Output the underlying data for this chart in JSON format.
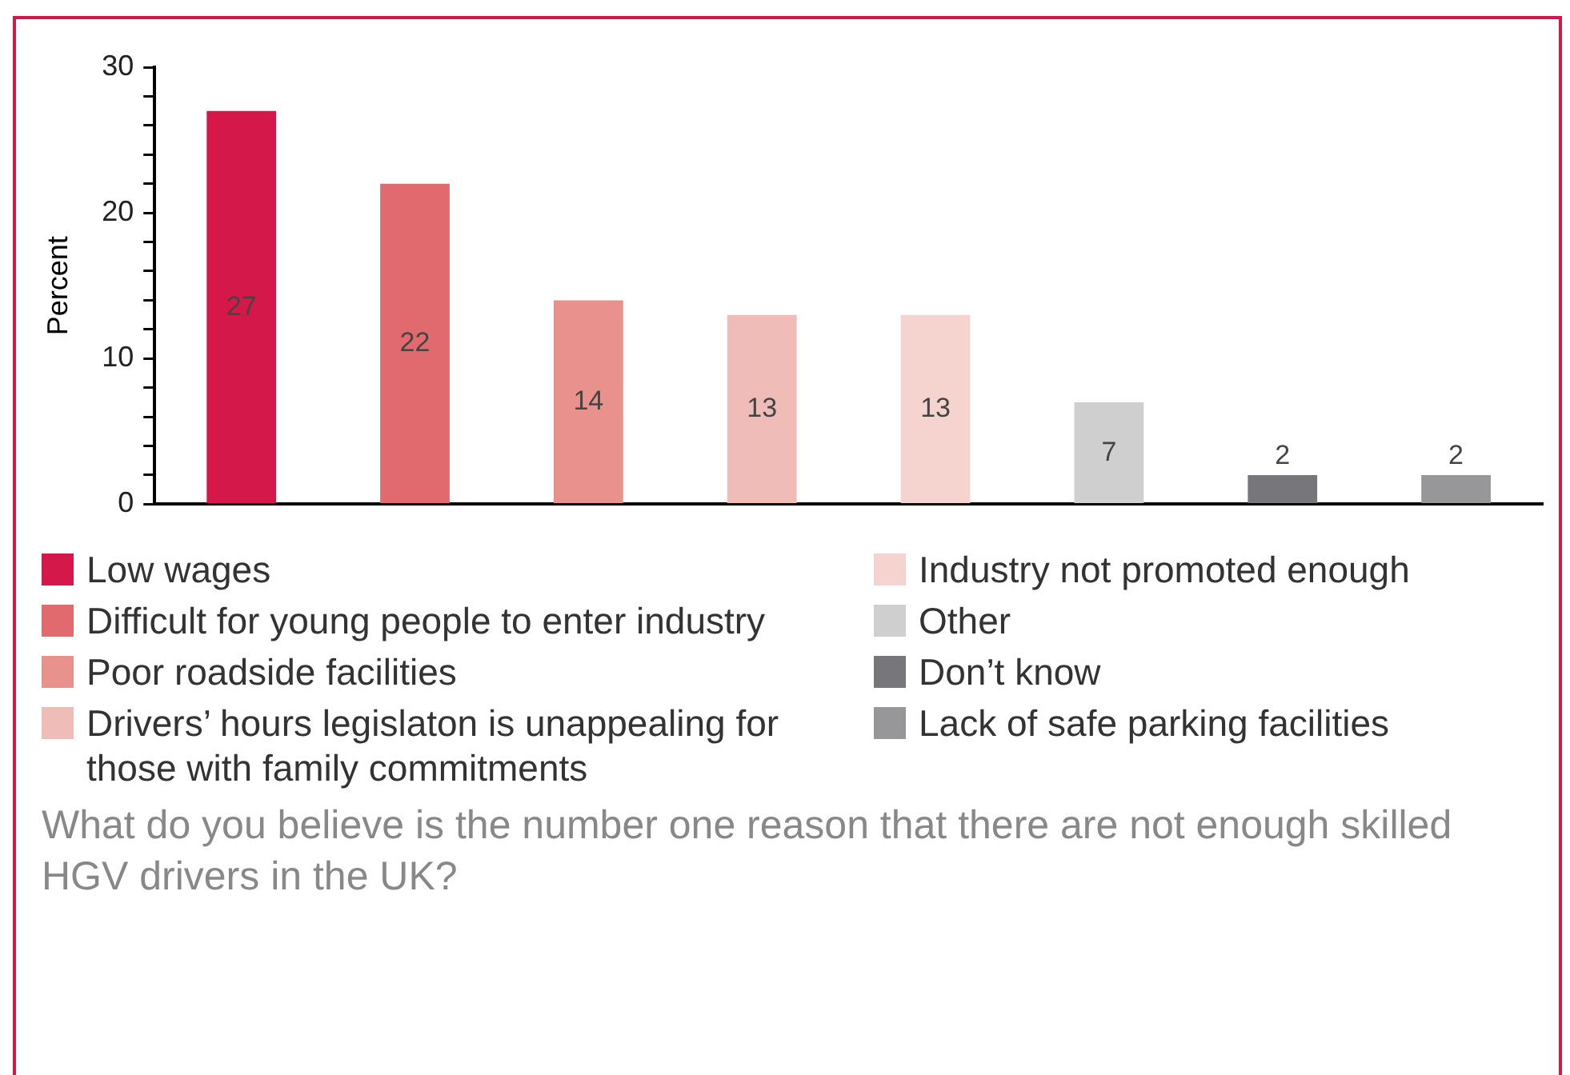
{
  "chart_data": {
    "type": "bar",
    "title": "What do you believe is the number one reason that there are not enough skilled HGV drivers in the UK?",
    "ylabel": "Percent",
    "categories": [
      null,
      null,
      null,
      null,
      null,
      null,
      null,
      null
    ],
    "series": [
      {
        "name": "Low wages",
        "color": "#d4184a",
        "values": [
          27,
          null,
          null,
          null,
          null,
          null,
          null,
          null
        ]
      },
      {
        "name": "Difficult for young people to enter industry",
        "color": "#e06a6e",
        "values": [
          null,
          22,
          null,
          null,
          null,
          null,
          null,
          null
        ]
      },
      {
        "name": "Poor roadside facilities",
        "color": "#e8918d",
        "values": [
          null,
          null,
          14,
          null,
          null,
          null,
          null,
          null
        ]
      },
      {
        "name": "Drivers’ hours legislaton is unappealing for those with family commitments",
        "color": "#efbcb8",
        "values": [
          null,
          null,
          null,
          13,
          null,
          null,
          null,
          null
        ]
      },
      {
        "name": "Industry not promoted enough",
        "color": "#f5d3cf",
        "values": [
          null,
          null,
          null,
          null,
          13,
          null,
          null,
          null
        ]
      },
      {
        "name": "Other",
        "color": "#cfcfcf",
        "values": [
          null,
          null,
          null,
          null,
          null,
          7,
          null,
          null
        ]
      },
      {
        "name": "Don’t know",
        "color": "#77777b",
        "values": [
          null,
          null,
          null,
          null,
          null,
          null,
          2,
          null
        ]
      },
      {
        "name": "Lack of safe parking facilities",
        "color": "#97979a",
        "values": [
          null,
          null,
          null,
          null,
          null,
          null,
          null,
          2
        ]
      }
    ],
    "ylim": [
      0,
      30
    ],
    "yticks": [
      0,
      {
        "value": 2,
        "label": null
      },
      {
        "value": 4,
        "label": null
      },
      {
        "value": 6,
        "label": null
      },
      {
        "value": 8,
        "label": null
      },
      10,
      {
        "value": 12,
        "label": null
      },
      {
        "value": 14,
        "label": null
      },
      {
        "value": 16,
        "label": null
      },
      {
        "value": 18,
        "label": null
      },
      20,
      {
        "value": 22,
        "label": null
      },
      {
        "value": 24,
        "label": null
      },
      {
        "value": 26,
        "label": null
      },
      {
        "value": 28,
        "label": null
      },
      30
    ],
    "tick_labels": "y",
    "grid": false,
    "legend": "bottom",
    "data_labels": true
  }
}
